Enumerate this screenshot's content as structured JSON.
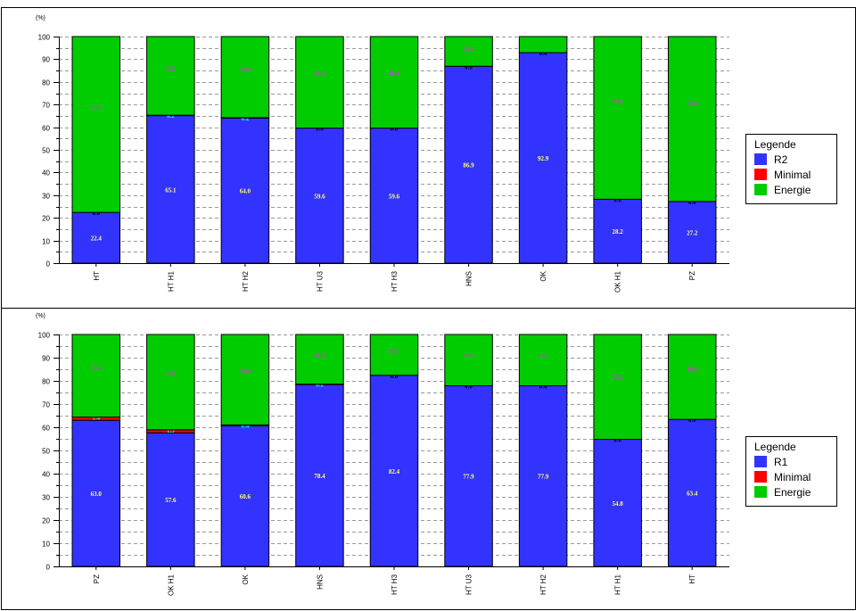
{
  "chart_data": [
    {
      "type": "bar",
      "stacked": true,
      "y_unit_label": "(%)",
      "ylim": [
        0,
        100
      ],
      "y_ticks": [
        0,
        10,
        20,
        30,
        40,
        50,
        60,
        70,
        80,
        90,
        100
      ],
      "grid": true,
      "legend_placement": "right",
      "legend_title": "Legende",
      "categories": [
        "HT",
        "HT H1",
        "HT H2",
        "HT U3",
        "HT H3",
        "HNS",
        "OK",
        "OK H1",
        "PZ"
      ],
      "series": [
        {
          "name": "R2",
          "color": "#3333ff",
          "label_color": "#ffff66",
          "values": [
            22.4,
            65.1,
            64.0,
            59.6,
            59.6,
            86.9,
            92.9,
            28.2,
            27.2
          ],
          "labels": [
            "22.4",
            "65.1",
            "64.0",
            "59.6",
            "59.6",
            "86.9",
            "92.9",
            "28.2",
            "27.2"
          ]
        },
        {
          "name": "Minimal",
          "color": "#ff0000",
          "label_color": "#00ffff",
          "values": [
            0.0,
            0.2,
            0.2,
            0.0,
            0.0,
            0.0,
            0.0,
            0.0,
            0.0
          ],
          "labels": [
            "0.0",
            "0.2",
            "0.2",
            "0.0",
            "0.0",
            "0.0",
            "0.0",
            "0.0",
            "0.0"
          ]
        },
        {
          "name": "Energie",
          "color": "#00cc00",
          "label_color": "#cc44cc",
          "values": [
            77.6,
            34.7,
            35.8,
            40.4,
            40.4,
            13.1,
            7.1,
            71.8,
            72.8
          ],
          "labels": [
            "77.6",
            "34.7",
            "35.8",
            "40.4",
            "40.4",
            "13.1",
            "",
            "71.8",
            "72.8"
          ]
        }
      ]
    },
    {
      "type": "bar",
      "stacked": true,
      "y_unit_label": "(%)",
      "ylim": [
        0,
        100
      ],
      "y_ticks": [
        0,
        10,
        20,
        30,
        40,
        50,
        60,
        70,
        80,
        90,
        100
      ],
      "grid": true,
      "legend_placement": "right",
      "legend_title": "Legende",
      "categories": [
        "PZ",
        "OK H1",
        "OK",
        "HNS",
        "HT H3",
        "HT U3",
        "HT H2",
        "HT H1",
        "HT"
      ],
      "series": [
        {
          "name": "R1",
          "color": "#3333ff",
          "label_color": "#ffff66",
          "values": [
            63.0,
            57.6,
            60.6,
            78.4,
            82.4,
            77.9,
            77.9,
            54.8,
            63.4
          ],
          "labels": [
            "63.0",
            "57.6",
            "60.6",
            "78.4",
            "82.4",
            "77.9",
            "77.9",
            "54.8",
            "63.4"
          ]
        },
        {
          "name": "Minimal",
          "color": "#ff0000",
          "label_color": "#00ffff",
          "values": [
            1.4,
            1.3,
            0.4,
            0.2,
            0.0,
            0.0,
            0.0,
            0.0,
            0.0
          ],
          "labels": [
            "1.4",
            "1.3",
            "0.4",
            "0.2",
            "0.0",
            "0.0",
            "0.0",
            "0.0",
            "0.0"
          ]
        },
        {
          "name": "Energie",
          "color": "#00cc00",
          "label_color": "#cc44cc",
          "values": [
            35.6,
            41.1,
            39.0,
            21.4,
            17.6,
            22.1,
            22.1,
            45.2,
            36.6
          ],
          "labels": [
            "35.6",
            "41.1",
            "39.0",
            "21.4",
            "17.6",
            "22.1",
            "22.1",
            "45.2",
            "36.6"
          ]
        }
      ]
    }
  ]
}
